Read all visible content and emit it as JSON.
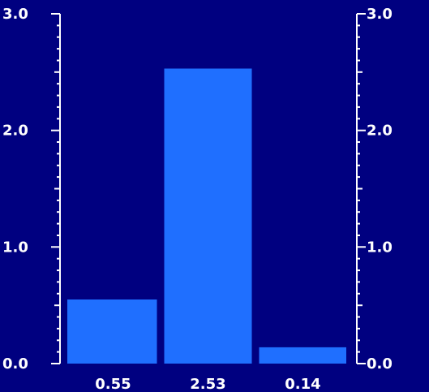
{
  "chart_data": {
    "type": "bar",
    "categories": [
      "0.55",
      "2.53",
      "0.14"
    ],
    "values": [
      0.55,
      2.53,
      0.14
    ],
    "title": "",
    "xlabel": "",
    "ylabel": "",
    "ylim": [
      0,
      3.0
    ],
    "yticks_major": [
      "0.0",
      "1.0",
      "2.0",
      "3.0"
    ],
    "minor_ticks_per_major": 10,
    "secondary_y_axis": true,
    "grid": false,
    "legend": "none",
    "colors": {
      "background": "#000080",
      "bar": "#1f6fff",
      "axis": "#ffffff",
      "text": "#ffffff"
    }
  }
}
